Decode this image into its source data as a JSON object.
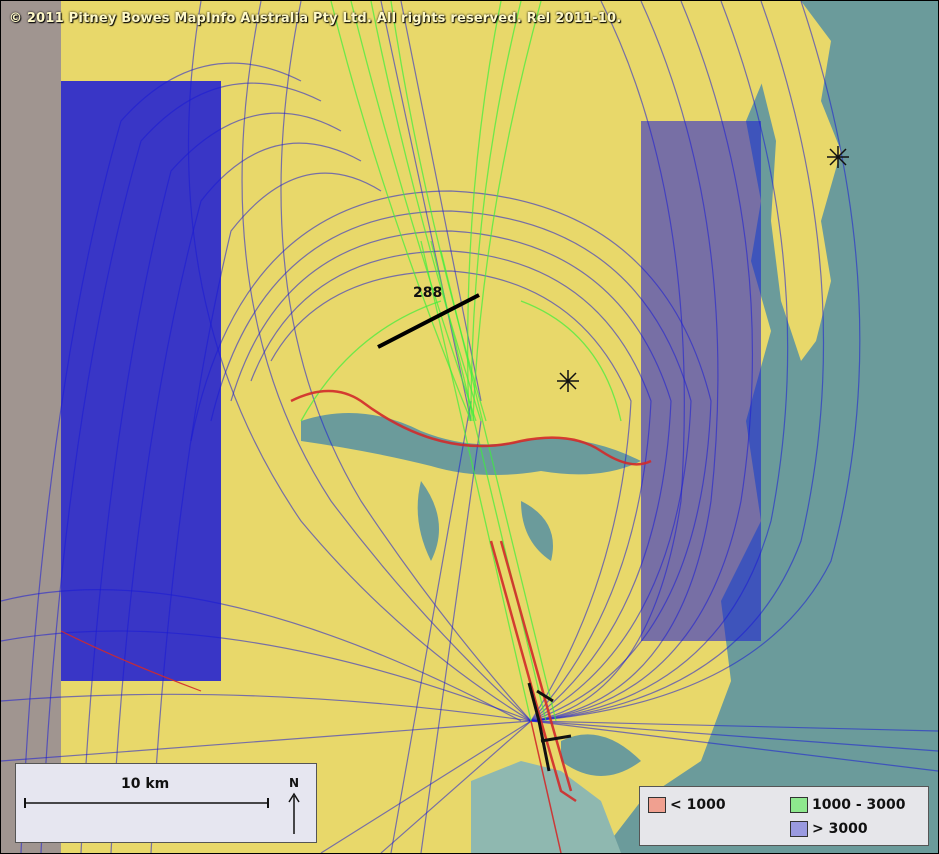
{
  "map": {
    "copyright": "© 2011 Pitney Bowes MapInfo Australia Pty Ltd. All rights reserved. Rel 2011-10.",
    "gate_label": "288",
    "colors": {
      "water": "#6b9b9b",
      "land": "#e8d86a",
      "track_low": "#d22a2a",
      "track_mid": "#3cf03c",
      "track_high": "#1a1ad6",
      "gate_line": "#000000"
    }
  },
  "scale": {
    "label": "10 km",
    "north_label": "N"
  },
  "legend": {
    "items": [
      {
        "label": "< 1000",
        "color": "#f0a090"
      },
      {
        "label": "1000 - 3000",
        "color": "#8ee88e"
      },
      {
        "label": "> 3000",
        "color": "#9a9ae0"
      }
    ]
  }
}
